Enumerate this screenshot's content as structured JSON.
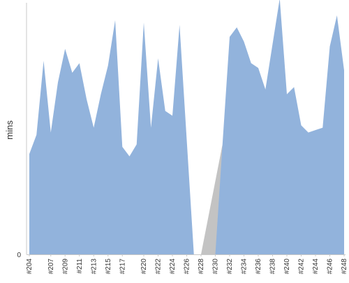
{
  "chart_data": {
    "type": "area",
    "title": "",
    "xlabel": "",
    "ylabel": "mins",
    "y_tick_labels": [
      "0"
    ],
    "ylim": [
      0,
      100
    ],
    "grid": false,
    "legend": "none",
    "colors": {
      "area_fill": "#92b3dc",
      "gap_fill": "#c3c3c3",
      "axis": "#c8c8c8"
    },
    "x": [
      "#204",
      "#205",
      "#206",
      "#207",
      "#208",
      "#209",
      "#210",
      "#211",
      "#212",
      "#213",
      "#214",
      "#215",
      "#216",
      "#217",
      "#218",
      "#219",
      "#220",
      "#221",
      "#222",
      "#223",
      "#224",
      "#225",
      "#226",
      "#227",
      "#228",
      "#229",
      "#230",
      "#231",
      "#232",
      "#233",
      "#234",
      "#235",
      "#236",
      "#237",
      "#238",
      "#239",
      "#240",
      "#241",
      "#242",
      "#243",
      "#244",
      "#245",
      "#246",
      "#247",
      "#248"
    ],
    "x_tick_labels": [
      "#204",
      "#207",
      "#209",
      "#211",
      "#213",
      "#215",
      "#217",
      "#220",
      "#222",
      "#224",
      "#226",
      "#228",
      "#230",
      "#232",
      "#234",
      "#236",
      "#238",
      "#240",
      "#242",
      "#244",
      "#246",
      "#248"
    ],
    "series": [
      {
        "values": [
          42,
          50,
          81,
          51,
          72,
          86,
          76,
          80,
          65,
          53,
          67,
          79,
          98,
          45,
          41,
          46,
          97,
          53,
          82,
          60,
          58,
          96,
          48,
          0,
          0,
          0,
          0,
          46,
          91,
          95,
          89,
          80,
          78,
          69,
          88,
          107,
          67,
          70,
          54,
          51,
          52,
          53,
          87,
          100,
          77
        ]
      }
    ],
    "gaps": [
      {
        "from": "#228",
        "to": "#231"
      }
    ]
  }
}
